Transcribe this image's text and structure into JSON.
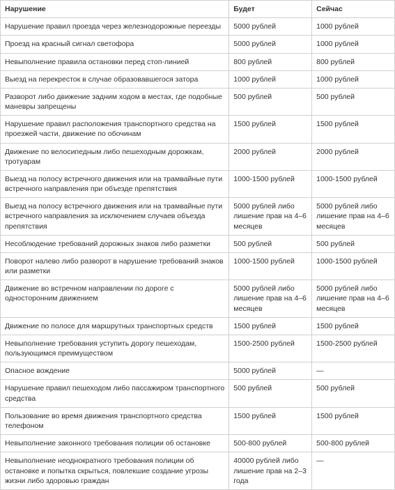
{
  "table": {
    "columns": [
      "Нарушение",
      "Будет",
      "Сейчас"
    ],
    "rows": [
      [
        "Нарушение правил проезда через железнодорожные переезды",
        "5000 рублей",
        "1000 рублей"
      ],
      [
        "Проезд на красный сигнал светофора",
        "5000 рублей",
        "1000 рублей"
      ],
      [
        "Невыполнение правила остановки перед стоп-линией",
        "800 рублей",
        "800 рублей"
      ],
      [
        "Выезд на перекресток в случае образовавшегося затора",
        "1000 рублей",
        "1000 рублей"
      ],
      [
        "Разворот либо движение задним ходом в местах, где подобные маневры запрещены",
        "500 рублей",
        "500 рублей"
      ],
      [
        "Нарушение правил расположения транспортного средства на проезжей части, движение по обочинам",
        "1500 рублей",
        "1500 рублей"
      ],
      [
        "Движение по велосипедным либо пешеходным дорожкам, тротуарам",
        "2000 рублей",
        "2000 рублей"
      ],
      [
        "Выезд на полосу встречного движения или на трамвайные пути встречного направления при объезде препятствия",
        "1000-1500 рублей",
        "1000-1500 рублей"
      ],
      [
        "Выезд на полосу встречного движения или на трамвайные пути встречного направления за исключением случаев объезда препятствия",
        "5000 рублей либо лишение прав на 4–6 месяцев",
        "5000 рублей либо лишение прав на 4–6 месяцев"
      ],
      [
        "Несоблюдение требований дорожных знаков либо разметки",
        "500 рублей",
        "500 рублей"
      ],
      [
        "Поворот налево либо разворот в нарушение требований знаков или разметки",
        "1000-1500 рублей",
        "1000-1500 рублей"
      ],
      [
        "Движение во встречном направлении по дороге с односторонним движением",
        "5000 рублей либо лишение прав на 4–6 месяцев",
        "5000 рублей либо лишение прав на 4–6 месяцев"
      ],
      [
        "Движение по полосе для маршрутных транспортных средств",
        "1500 рублей",
        "1500 рублей"
      ],
      [
        "Невыполнение требования уступить дорогу пешеходам, пользующимся преимуществом",
        "1500-2500 рублей",
        "1500-2500 рублей"
      ],
      [
        "Опасное вождение",
        "5000 рублей",
        "—"
      ],
      [
        "Нарушение правил пешеходом либо пассажиром транспортного средства",
        "500 рублей",
        "500 рублей"
      ],
      [
        "Пользование во время движения транспортного средства телефоном",
        "1500 рублей",
        "1500 рублей"
      ],
      [
        "Невыполнение законного требования полиции об остановке",
        "500-800 рублей",
        "500-800 рублей"
      ],
      [
        "Невыполнение неоднократного требования полиции об остановке и попытка скрыться, повлекшие создание угрозы жизни либо здоровью граждан",
        "40000 рублей либо лишение прав на 2–3 года",
        "—"
      ]
    ]
  }
}
